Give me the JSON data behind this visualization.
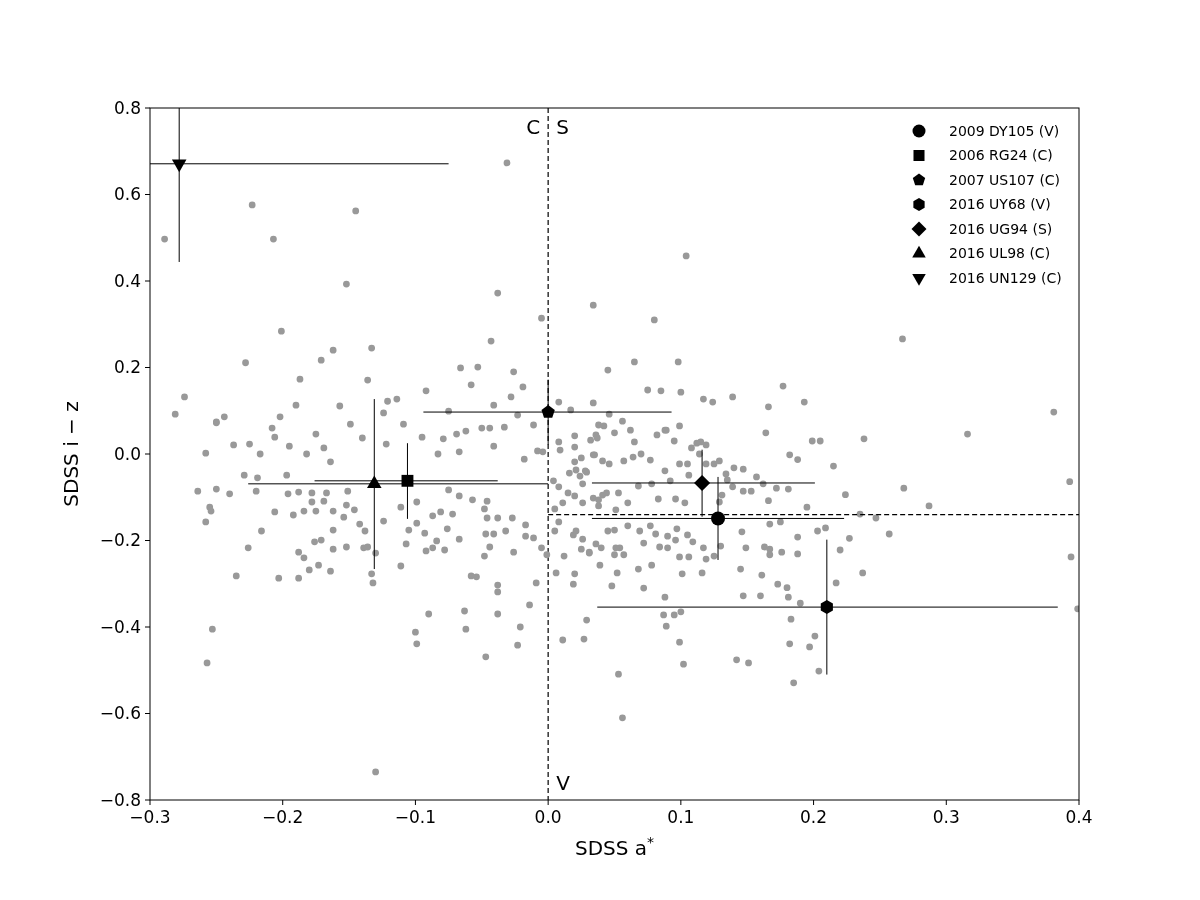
{
  "chart_data": {
    "type": "scatter",
    "xlabel": "SDSS a$^{*}$",
    "ylabel": "SDSS i − z",
    "xlim": [
      -0.3,
      0.4
    ],
    "ylim": [
      -0.8,
      0.8
    ],
    "xticks": [
      {
        "value": -0.3,
        "label": "−0.3"
      },
      {
        "value": -0.2,
        "label": "−0.2"
      },
      {
        "value": -0.1,
        "label": "−0.1"
      },
      {
        "value": 0,
        "label": "0.0"
      },
      {
        "value": 0.1,
        "label": "0.1"
      },
      {
        "value": 0.2,
        "label": "0.2"
      },
      {
        "value": 0.3,
        "label": "0.3"
      },
      {
        "value": 0.4,
        "label": "0.4"
      }
    ],
    "yticks": [
      {
        "value": -0.8,
        "label": "−0.8"
      },
      {
        "value": -0.6,
        "label": "−0.6"
      },
      {
        "value": -0.4,
        "label": "−0.4"
      },
      {
        "value": -0.2,
        "label": "−0.2"
      },
      {
        "value": 0,
        "label": "0.0"
      },
      {
        "value": 0.2,
        "label": "0.2"
      },
      {
        "value": 0.4,
        "label": "0.4"
      },
      {
        "value": 0.6,
        "label": "0.6"
      },
      {
        "value": 0.8,
        "label": "0.8"
      }
    ],
    "legend": "top right",
    "ref_lines": [
      {
        "axis": "x",
        "value": 0,
        "color": "#000000",
        "line_style": "dashed"
      }
    ],
    "annotations": [
      "C",
      "S",
      "V"
    ],
    "series": [
      {
        "color": "#999999",
        "marker": "circle",
        "x": [
          -0.031,
          -0.223,
          -0.145,
          -0.289,
          -0.207,
          -0.152,
          -0.038,
          -0.005,
          0.034,
          -0.201,
          -0.043,
          -0.133,
          -0.162,
          -0.171,
          -0.228,
          -0.066,
          -0.053,
          -0.026,
          -0.187,
          -0.136,
          -0.058,
          -0.019,
          -0.274,
          -0.092,
          -0.028,
          -0.281,
          -0.19,
          -0.157,
          -0.121,
          -0.114,
          0.045,
          0.008,
          0.034,
          -0.25,
          -0.244,
          -0.202,
          -0.149,
          -0.041,
          -0.023,
          -0.075,
          -0.044,
          -0.062,
          -0.124,
          -0.109,
          0.017,
          0.104,
          0.08,
          0.267,
          0.065,
          0.098,
          0.177,
          0.075,
          0.085,
          0.1,
          0.139,
          0.117,
          0.124,
          0.193,
          0.166,
          0.381,
          0.316,
          0.238,
          0.199,
          0.205,
          0.164,
          0.046,
          0.056,
          0.088,
          0.099,
          0.02,
          0.036,
          0.05,
          0.095,
          0.008,
          0.115,
          0.065,
          -0.25,
          -0.208,
          -0.175,
          -0.258,
          -0.237,
          -0.225,
          -0.217,
          -0.206,
          -0.195,
          -0.182,
          -0.169,
          -0.164,
          -0.14,
          -0.122,
          -0.095,
          -0.079,
          -0.069,
          -0.05,
          -0.033,
          -0.011,
          -0.018,
          -0.041,
          -0.067,
          -0.083,
          -0.229,
          -0.264,
          -0.25,
          -0.24,
          -0.219,
          -0.22,
          -0.197,
          -0.196,
          -0.188,
          -0.178,
          -0.167,
          -0.151,
          -0.178,
          -0.169,
          -0.255,
          -0.254,
          -0.206,
          -0.192,
          -0.184,
          -0.175,
          -0.162,
          -0.154,
          -0.152,
          -0.146,
          -0.258,
          -0.216,
          -0.226,
          -0.188,
          -0.176,
          -0.171,
          -0.162,
          -0.162,
          -0.152,
          -0.142,
          -0.138,
          -0.139,
          -0.136,
          -0.184,
          -0.18,
          -0.173,
          -0.164,
          -0.235,
          -0.203,
          -0.188,
          -0.133,
          -0.132,
          -0.124,
          -0.13,
          -0.111,
          -0.107,
          -0.111,
          -0.105,
          -0.099,
          -0.099,
          -0.093,
          -0.092,
          -0.087,
          -0.084,
          -0.078,
          -0.087,
          -0.081,
          -0.076,
          -0.072,
          -0.067,
          -0.075,
          -0.067,
          -0.057,
          -0.046,
          -0.048,
          -0.046,
          -0.038,
          -0.027,
          -0.047,
          -0.041,
          -0.032,
          -0.044,
          -0.048,
          -0.026,
          -0.017,
          -0.011,
          -0.017,
          -0.005,
          -0.001,
          -0.009,
          -0.014,
          -0.038,
          -0.038,
          -0.058,
          -0.054,
          -0.09,
          -0.063,
          -0.062,
          -0.038,
          -0.021,
          -0.023,
          -0.047,
          -0.1,
          -0.099,
          -0.253,
          -0.257,
          -0.13,
          0.011,
          0.027,
          0.029,
          0.048,
          0.019,
          0.02,
          0.006,
          0.012,
          0.005,
          0.008,
          0.019,
          0.025,
          0.031,
          0.039,
          0.026,
          0.036,
          0.04,
          0.005,
          0.011,
          0.008,
          0.004,
          0.016,
          0.021,
          0.029,
          0.02,
          0.026,
          0.034,
          0.041,
          0.038,
          0.025,
          0.034,
          0.02,
          0.009,
          0.037,
          -0.004,
          -0.008,
          0.215,
          0.393,
          0.268,
          0.224,
          0.287,
          0.181,
          0.172,
          0.166,
          0.157,
          0.182,
          0.188,
          0.195,
          0.247,
          0.257,
          0.235,
          0.203,
          0.209,
          0.227,
          0.22,
          0.188,
          0.188,
          0.176,
          0.167,
          0.163,
          0.167,
          0.149,
          0.146,
          0.175,
          0.167,
          0.394,
          0.399,
          0.237,
          0.217,
          0.18,
          0.173,
          0.181,
          0.161,
          0.145,
          0.16,
          0.147,
          0.19,
          0.183,
          0.201,
          0.182,
          0.197,
          0.204,
          0.185,
          0.142,
          0.151,
          0.102,
          0.099,
          0.087,
          0.095,
          0.1,
          0.089,
          0.088,
          0.053,
          0.056,
          0.072,
          0.052,
          0.068,
          0.078,
          0.101,
          0.116,
          0.106,
          0.099,
          0.119,
          0.125,
          0.117,
          0.13,
          0.09,
          0.084,
          0.096,
          0.109,
          0.105,
          0.097,
          0.09,
          0.081,
          0.077,
          0.072,
          0.054,
          0.05,
          0.057,
          0.051,
          0.031,
          0.05,
          0.06,
          0.069,
          0.045,
          0.021,
          0.062,
          0.038,
          0.042,
          0.089,
          0.082,
          0.108,
          0.112,
          0.119,
          0.114,
          0.125,
          0.129,
          0.119,
          0.14,
          0.147,
          0.134,
          0.135,
          0.139,
          0.147,
          0.153,
          0.131,
          0.129,
          0.162,
          0.105,
          0.099,
          0.088,
          0.077,
          0.07,
          0.064,
          0.057,
          0.046,
          0.041,
          0.035,
          0.02,
          0.028,
          0.024,
          0.026,
          0.015,
          0.038,
          0.044,
          0.053,
          0.06,
          0.051,
          0.068,
          0.078,
          0.083,
          0.096,
          0.103,
          0.092,
          0.106,
          0.032
        ],
        "values": [
          0.673,
          0.576,
          0.562,
          0.497,
          0.497,
          0.393,
          0.372,
          0.314,
          0.344,
          0.284,
          0.261,
          0.245,
          0.24,
          0.217,
          0.211,
          0.199,
          0.201,
          0.19,
          0.173,
          0.171,
          0.16,
          0.155,
          0.132,
          0.146,
          0.132,
          0.092,
          0.113,
          0.111,
          0.122,
          0.127,
          0.194,
          0.12,
          0.118,
          0.074,
          0.086,
          0.086,
          0.069,
          0.113,
          0.09,
          0.099,
          0.06,
          0.053,
          0.095,
          0.069,
          0.102,
          0.458,
          0.31,
          0.266,
          0.213,
          0.213,
          0.157,
          0.148,
          0.146,
          0.143,
          0.132,
          0.127,
          0.12,
          0.12,
          0.109,
          0.097,
          0.046,
          0.035,
          0.03,
          0.03,
          0.049,
          0.092,
          0.076,
          0.055,
          0.065,
          0.042,
          0.044,
          0.049,
          0.03,
          0.028,
          0.028,
          0.028,
          0.072,
          0.06,
          0.046,
          0.002,
          0.021,
          0.023,
          0.0,
          0.039,
          0.018,
          0.0,
          0.014,
          -0.018,
          0.037,
          0.023,
          0.039,
          0.035,
          0.046,
          0.06,
          0.062,
          0.067,
          -0.012,
          0.018,
          0.005,
          0.0,
          -0.049,
          -0.086,
          -0.081,
          -0.092,
          -0.055,
          -0.086,
          -0.049,
          -0.092,
          -0.088,
          -0.09,
          -0.09,
          -0.086,
          -0.111,
          -0.109,
          -0.123,
          -0.132,
          -0.134,
          -0.141,
          -0.132,
          -0.132,
          -0.132,
          -0.146,
          -0.118,
          -0.129,
          -0.157,
          -0.178,
          -0.217,
          -0.227,
          -0.203,
          -0.199,
          -0.176,
          -0.22,
          -0.215,
          -0.162,
          -0.178,
          -0.217,
          -0.215,
          -0.24,
          -0.268,
          -0.257,
          -0.271,
          -0.282,
          -0.287,
          -0.287,
          -0.277,
          -0.298,
          -0.155,
          -0.229,
          -0.123,
          -0.208,
          -0.259,
          -0.176,
          -0.16,
          -0.111,
          -0.183,
          -0.224,
          -0.217,
          -0.201,
          -0.222,
          -0.143,
          -0.134,
          -0.173,
          -0.139,
          -0.197,
          -0.083,
          -0.097,
          -0.106,
          -0.109,
          -0.127,
          -0.148,
          -0.148,
          -0.148,
          -0.185,
          -0.185,
          -0.178,
          -0.215,
          -0.236,
          -0.227,
          -0.19,
          -0.194,
          -0.164,
          -0.217,
          -0.233,
          -0.298,
          -0.349,
          -0.303,
          -0.319,
          -0.282,
          -0.284,
          -0.37,
          -0.363,
          -0.405,
          -0.37,
          -0.4,
          -0.442,
          -0.469,
          -0.412,
          -0.439,
          -0.405,
          -0.483,
          -0.735,
          -0.43,
          -0.428,
          -0.384,
          -0.305,
          -0.301,
          -0.277,
          -0.275,
          -0.236,
          -0.178,
          -0.157,
          -0.187,
          -0.22,
          -0.227,
          -0.257,
          -0.197,
          -0.208,
          -0.217,
          -0.127,
          -0.113,
          -0.076,
          -0.062,
          -0.044,
          -0.037,
          -0.042,
          -0.097,
          -0.113,
          -0.102,
          -0.095,
          -0.12,
          -0.009,
          -0.002,
          0.016,
          0.009,
          0.037,
          0.005,
          0.007,
          -0.028,
          -0.064,
          -0.079,
          -0.094,
          -0.12,
          -0.081,
          -0.079,
          -0.108,
          -0.053,
          -0.002,
          -0.013,
          -0.123,
          -0.148,
          -0.185,
          -0.139,
          -0.178,
          -0.171,
          -0.195,
          -0.222,
          -0.192,
          -0.231,
          -0.227,
          -0.22,
          -0.215,
          -0.233,
          -0.217,
          -0.18,
          -0.157,
          -0.162,
          -0.238,
          -0.358,
          -0.275,
          -0.298,
          -0.309,
          -0.301,
          -0.331,
          -0.28,
          -0.266,
          -0.328,
          -0.328,
          -0.345,
          -0.382,
          -0.421,
          -0.439,
          -0.446,
          -0.502,
          -0.529,
          -0.476,
          -0.483,
          -0.486,
          -0.435,
          -0.372,
          -0.372,
          -0.365,
          -0.398,
          -0.331,
          -0.509,
          -0.61,
          -0.31,
          -0.275,
          -0.266,
          -0.257,
          -0.277,
          -0.275,
          -0.238,
          -0.238,
          -0.243,
          -0.236,
          -0.217,
          -0.213,
          -0.217,
          -0.215,
          -0.199,
          -0.203,
          -0.187,
          -0.173,
          -0.19,
          -0.185,
          -0.166,
          -0.206,
          -0.217,
          -0.233,
          -0.233,
          -0.217,
          -0.229,
          -0.176,
          -0.166,
          -0.178,
          -0.178,
          -0.178,
          0.055,
          0.067,
          0.065,
          0.055,
          0.044,
          0.014,
          0.025,
          0.021,
          0.0,
          -0.023,
          -0.016,
          -0.023,
          -0.032,
          -0.035,
          -0.046,
          -0.06,
          -0.076,
          -0.086,
          -0.086,
          -0.095,
          -0.111,
          -0.069,
          -0.023,
          -0.023,
          -0.039,
          -0.014,
          0.0,
          -0.007,
          -0.016,
          -0.023,
          -0.016,
          -0.002,
          -0.018,
          -0.039,
          -0.051,
          -0.069,
          -0.09,
          -0.106,
          -0.09,
          -0.09,
          -0.113,
          -0.129,
          -0.074,
          -0.069,
          -0.104,
          -0.104,
          -0.113,
          -0.062,
          -0.049,
          0.032
        ]
      },
      {
        "type": "line",
        "color": "#000000",
        "line_style": "dashed",
        "x": [
          0,
          0.4
        ],
        "values": [
          -0.14,
          -0.14
        ]
      },
      {
        "name": "2009 DY105 (V)",
        "color": "#000000",
        "marker": "circle",
        "x": [
          0.128
        ],
        "values": [
          -0.149
        ],
        "xerrors": [
          [
            0.033,
            0.223
          ]
        ],
        "errors": [
          [
            -0.245,
            -0.053
          ]
        ]
      },
      {
        "name": "2006 RG24 (C)",
        "color": "#000000",
        "marker": "square",
        "x": [
          -0.106
        ],
        "values": [
          -0.062
        ],
        "xerrors": [
          [
            -0.176,
            -0.038
          ]
        ],
        "errors": [
          [
            -0.15,
            0.025
          ]
        ]
      },
      {
        "name": "2007 US107 (C)",
        "color": "#000000",
        "x": [
          0.0
        ],
        "values": [
          0.097
        ],
        "xerrors": [
          [
            -0.094,
            0.093
          ]
        ],
        "errors": [
          [
            0.022,
            0.172
          ]
        ]
      },
      {
        "name": "2016 UY68 (V)",
        "color": "#000000",
        "x": [
          0.21
        ],
        "values": [
          -0.354
        ],
        "xerrors": [
          [
            0.037,
            0.384
          ]
        ],
        "errors": [
          [
            -0.51,
            -0.198
          ]
        ]
      },
      {
        "name": "2016 UG94 (S)",
        "color": "#000000",
        "marker": "diamond",
        "x": [
          0.116
        ],
        "values": [
          -0.067
        ],
        "xerrors": [
          [
            0.033,
            0.201
          ]
        ],
        "errors": [
          [
            -0.145,
            0.01
          ]
        ]
      },
      {
        "name": "2016 UL98 (C)",
        "color": "#000000",
        "marker": "triangle",
        "x": [
          -0.131
        ],
        "values": [
          -0.069
        ],
        "xerrors": [
          [
            -0.226,
            0.0
          ]
        ],
        "errors": [
          [
            -0.266,
            0.127
          ]
        ]
      },
      {
        "name": "2016 UN129 (C)",
        "color": "#000000",
        "marker": "triangle-down",
        "x": [
          -0.278
        ],
        "values": [
          0.671
        ],
        "xerrors": [
          [
            -0.3,
            -0.075
          ]
        ],
        "errors": [
          [
            0.444,
            0.8
          ]
        ]
      }
    ]
  }
}
